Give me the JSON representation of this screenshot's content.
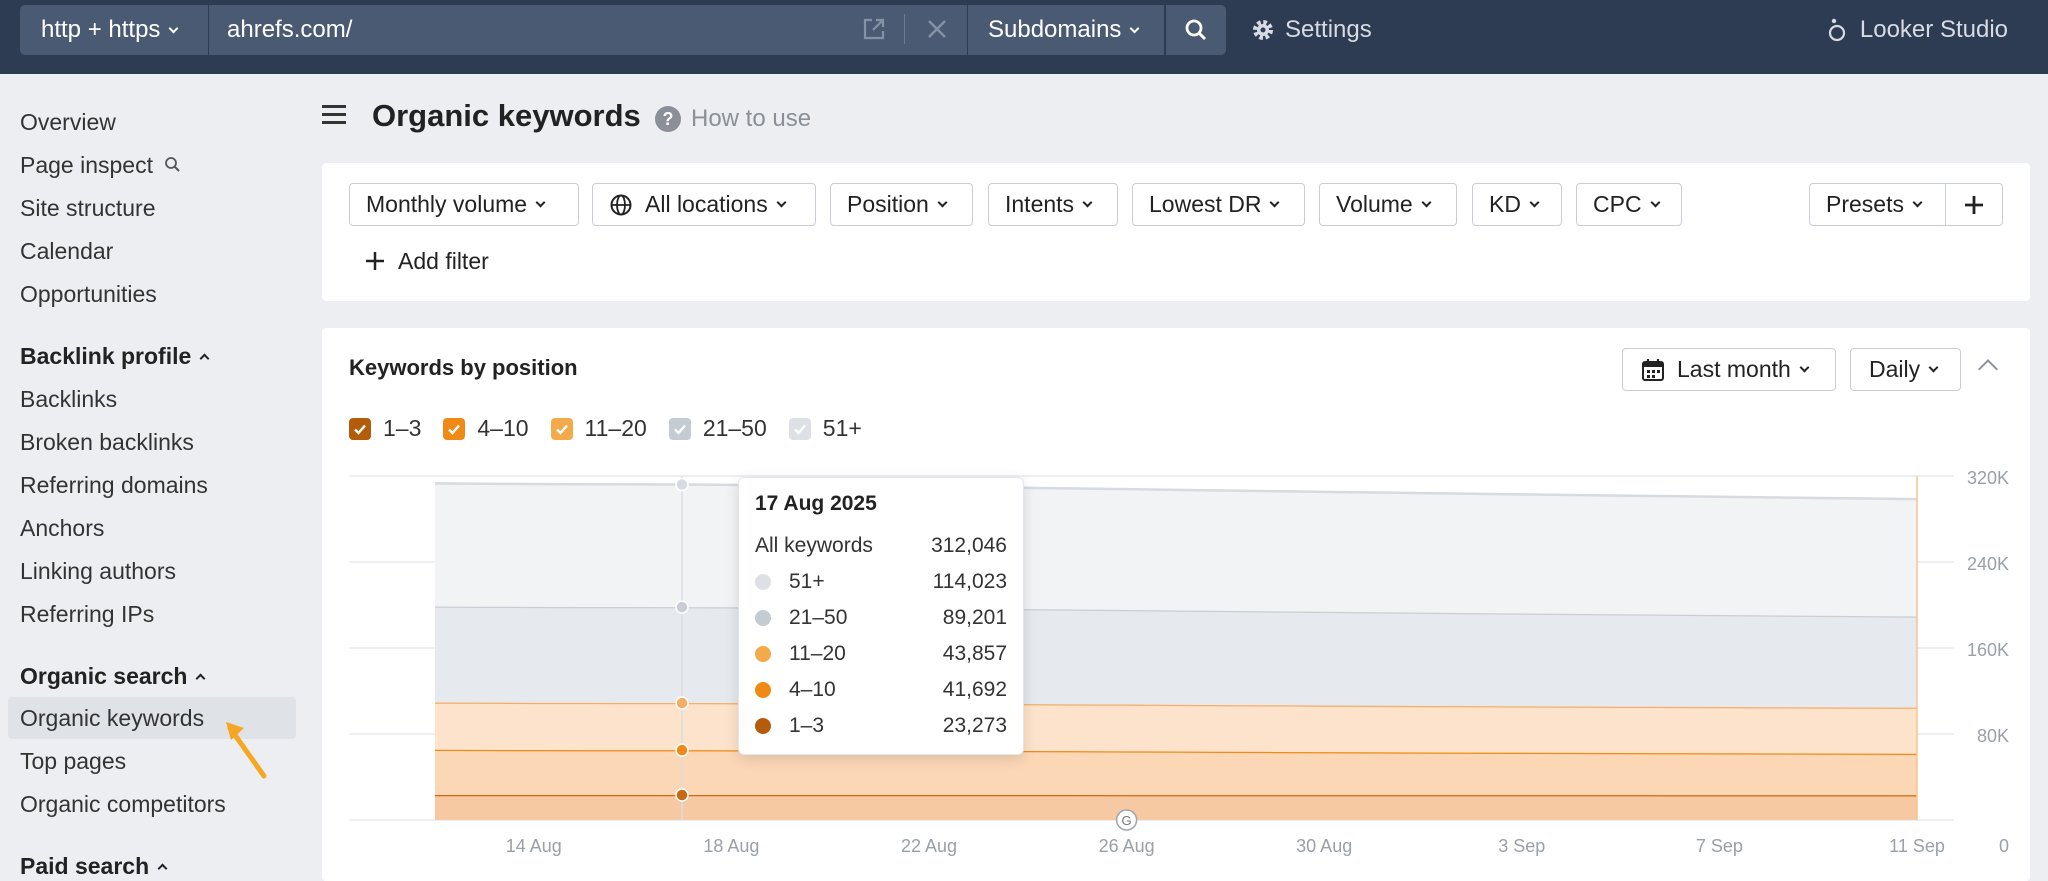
{
  "topbar": {
    "protocol": "http + https",
    "url": "ahrefs.com/",
    "mode": "Subdomains",
    "settings": "Settings",
    "looker": "Looker Studio"
  },
  "sidebar": {
    "items_top": [
      "Overview",
      "Page inspect",
      "Site structure",
      "Calendar",
      "Opportunities"
    ],
    "backlink_head": "Backlink profile",
    "backlink_items": [
      "Backlinks",
      "Broken backlinks",
      "Referring domains",
      "Anchors",
      "Linking authors",
      "Referring IPs"
    ],
    "organic_head": "Organic search",
    "organic_items": [
      "Organic keywords",
      "Top pages",
      "Organic competitors"
    ],
    "paid_head": "Paid search"
  },
  "page": {
    "title": "Organic keywords",
    "help": "How to use"
  },
  "filters": {
    "buttons": [
      "Monthly volume",
      "All locations",
      "Position",
      "Intents",
      "Lowest DR",
      "Volume",
      "KD",
      "CPC"
    ],
    "presets": "Presets",
    "add_filter": "Add filter"
  },
  "card": {
    "title": "Keywords by position",
    "range": "Last month",
    "granularity": "Daily",
    "legend": [
      {
        "label": "1–3",
        "color": "#b35c0c",
        "checked": true
      },
      {
        "label": "4–10",
        "color": "#f08a16",
        "checked": true
      },
      {
        "label": "11–20",
        "color": "#f4a94a",
        "checked": true
      },
      {
        "label": "21–50",
        "color": "#c5cbd3",
        "checked": true
      },
      {
        "label": "51+",
        "color": "#dde1e6",
        "checked": true
      }
    ]
  },
  "chart_data": {
    "type": "area",
    "x": [
      "12 Aug",
      "13 Aug",
      "14 Aug",
      "15 Aug",
      "16 Aug",
      "17 Aug",
      "18 Aug",
      "19 Aug",
      "20 Aug",
      "21 Aug",
      "22 Aug",
      "23 Aug",
      "24 Aug",
      "25 Aug",
      "26 Aug",
      "27 Aug",
      "28 Aug",
      "29 Aug",
      "30 Aug",
      "31 Aug",
      "1 Sep",
      "2 Sep",
      "3 Sep",
      "4 Sep",
      "5 Sep",
      "6 Sep",
      "7 Sep",
      "8 Sep",
      "9 Sep",
      "10 Sep",
      "11 Sep"
    ],
    "x_ticks": [
      "14 Aug",
      "18 Aug",
      "22 Aug",
      "26 Aug",
      "30 Aug",
      "3 Sep",
      "7 Sep",
      "11 Sep"
    ],
    "y_ticks": [
      "0",
      "80K",
      "160K",
      "240K",
      "320K"
    ],
    "ylim": [
      0,
      320000
    ],
    "stacked": true,
    "series": [
      {
        "name": "1–3",
        "color": "#b35c0c",
        "values": [
          23300,
          23300,
          23290,
          23280,
          23275,
          23273,
          23270,
          23260,
          23250,
          23240,
          23230,
          23220,
          23210,
          23200,
          23190,
          23180,
          23170,
          23160,
          23150,
          23140,
          23130,
          23120,
          23110,
          23100,
          23090,
          23080,
          23070,
          23060,
          23050,
          23040,
          23030
        ]
      },
      {
        "name": "4–10",
        "color": "#f08a16",
        "values": [
          42000,
          41900,
          41800,
          41750,
          41720,
          41692,
          41650,
          41600,
          41500,
          41400,
          41300,
          41150,
          41000,
          40850,
          40700,
          40500,
          40300,
          40150,
          40000,
          39850,
          39700,
          39550,
          39400,
          39300,
          39200,
          39100,
          39000,
          38900,
          38800,
          38700,
          38600
        ]
      },
      {
        "name": "11–20",
        "color": "#f4a94a",
        "values": [
          44000,
          43950,
          43900,
          43880,
          43870,
          43857,
          43820,
          43780,
          43740,
          43700,
          43660,
          43620,
          43580,
          43540,
          43500,
          43460,
          43420,
          43380,
          43340,
          43300,
          43260,
          43220,
          43180,
          43140,
          43100,
          43060,
          43020,
          42980,
          42940,
          42900,
          42860
        ]
      },
      {
        "name": "21–50",
        "color": "#c5cbd3",
        "values": [
          89300,
          89280,
          89260,
          89240,
          89220,
          89201,
          89150,
          89100,
          89000,
          88900,
          88800,
          88600,
          88400,
          88200,
          88000,
          87800,
          87600,
          87400,
          87200,
          87000,
          86800,
          86600,
          86400,
          86200,
          86000,
          85800,
          85600,
          85400,
          85200,
          85000,
          84800
        ]
      },
      {
        "name": "51+",
        "color": "#dde1e6",
        "values": [
          114500,
          114400,
          114300,
          114200,
          114100,
          114023,
          113900,
          113800,
          113600,
          113400,
          113200,
          113000,
          112800,
          112600,
          112400,
          112200,
          112000,
          111800,
          111600,
          111400,
          111200,
          111000,
          110800,
          110600,
          110400,
          110200,
          110000,
          109800,
          109600,
          109400,
          109200
        ]
      }
    ],
    "tooltip": {
      "date": "17 Aug 2025",
      "total_label": "All keywords",
      "total": "312,046",
      "rows": [
        {
          "label": "51+",
          "value": "114,023",
          "color": "#dde1e6"
        },
        {
          "label": "21–50",
          "value": "89,201",
          "color": "#c5cbd3"
        },
        {
          "label": "11–20",
          "value": "43,857",
          "color": "#f4a94a"
        },
        {
          "label": "4–10",
          "value": "41,692",
          "color": "#f08a16"
        },
        {
          "label": "1–3",
          "value": "23,273",
          "color": "#b35c0c"
        }
      ]
    },
    "annotation_marker": "G"
  }
}
